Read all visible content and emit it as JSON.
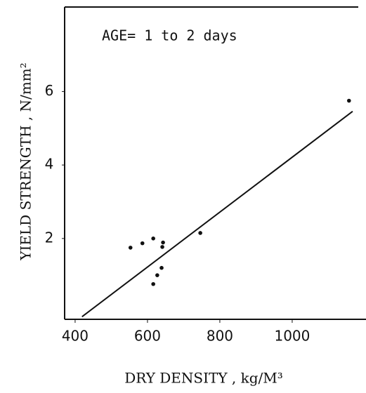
{
  "chart_data": {
    "type": "scatter",
    "annotation": "AGE= 1 to 2 days",
    "x_label": "DRY   DENSITY , kg/M³",
    "y_label": "YIELD STRENGTH , N/mm²",
    "x": [
      553,
      586,
      616,
      616,
      627,
      639,
      641,
      643,
      746,
      1157
    ],
    "values": [
      1.75,
      1.87,
      2.0,
      0.76,
      1.0,
      1.2,
      1.77,
      1.89,
      2.15,
      5.75
    ],
    "color": "#111111",
    "fit": {
      "x": [
        419,
        1167
      ],
      "values": [
        -0.13,
        5.46
      ]
    },
    "xlim": [
      371,
      1204
    ],
    "ylim": [
      -0.2,
      8.3
    ],
    "xticks": [
      400,
      600,
      800,
      1000
    ],
    "yticks": [
      2,
      4,
      6
    ]
  }
}
